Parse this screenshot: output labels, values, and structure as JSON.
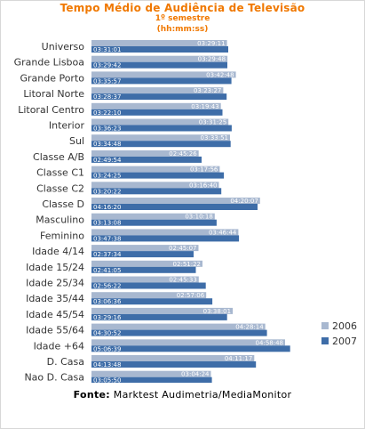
{
  "chart_data": {
    "type": "bar",
    "orientation": "horizontal",
    "title": "Tempo Médio de Audiência  de Televisão",
    "subtitle1": "1º semestre",
    "subtitle2": "(hh:mm:ss)",
    "source_label": "Fonte:",
    "source_text": "Marktest Audimetria/MediaMonitor",
    "legend_position": "right",
    "colors": {
      "2006": "#a8b8d0",
      "2007": "#3e6da8"
    },
    "categories": [
      "Universo",
      "Grande Lisboa",
      "Grande Porto",
      "Litoral Norte",
      "Litoral Centro",
      "Interior",
      "Sul",
      "Classe A/B",
      "Classe C1",
      "Classe C2",
      "Classe D",
      "Masculino",
      "Feminino",
      "Idade 4/14",
      "Idade 15/24",
      "Idade 25/34",
      "Idade 35/44",
      "Idade 45/54",
      "Idade 55/64",
      "Idade +64",
      "D. Casa",
      "Nao D. Casa"
    ],
    "series": [
      {
        "name": "2006",
        "values": [
          "03:29:11",
          "03:29:48",
          "03:42:48",
          "03:23:27",
          "03:19:43",
          "03:31:25",
          "03:33:51",
          "02:45:26",
          "03:17:56",
          "03:16:40",
          "04:20:07",
          "03:10:18",
          "03:46:44",
          "02:45:07",
          "02:51:22",
          "02:45:33",
          "02:57:06",
          "03:38:01",
          "04:28:14",
          "04:58:48",
          "04:11:17",
          "03:04:24"
        ]
      },
      {
        "name": "2007",
        "values": [
          "03:31:01",
          "03:29:42",
          "03:35:57",
          "03:28:37",
          "03:22:10",
          "03:36:23",
          "03:34:48",
          "02:49:54",
          "03:24:25",
          "03:20:22",
          "04:16:20",
          "03:13:08",
          "03:47:38",
          "02:37:34",
          "02:41:05",
          "02:56:22",
          "03:06:36",
          "03:29:16",
          "04:30:52",
          "05:06:39",
          "04:13:48",
          "03:05:50"
        ]
      }
    ],
    "xlim": [
      0,
      "06:00:00"
    ],
    "grid": false
  }
}
